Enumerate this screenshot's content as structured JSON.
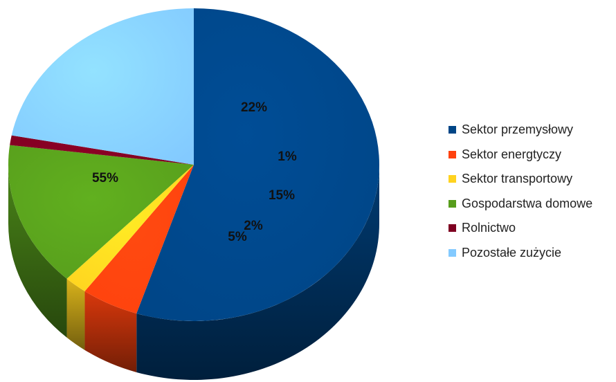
{
  "chart_data": {
    "type": "pie",
    "style": "3d",
    "slices": [
      {
        "label": "Sektor przemysłowy",
        "value": 55,
        "value_label": "55%",
        "color": "#004586"
      },
      {
        "label": "Sektor energtyczy",
        "value": 5,
        "value_label": "5%",
        "color": "#ff420e"
      },
      {
        "label": "Sektor transportowy",
        "value": 2,
        "value_label": "2%",
        "color": "#ffd320"
      },
      {
        "label": "Gospodarstwa domowe",
        "value": 15,
        "value_label": "15%",
        "color": "#579d1c"
      },
      {
        "label": "Rolnictwo",
        "value": 1,
        "value_label": "1%",
        "color": "#7e0021"
      },
      {
        "label": "Pozostałe zużycie",
        "value": 22,
        "value_label": "22%",
        "color": "#83caff"
      }
    ],
    "legend_position": "right"
  }
}
